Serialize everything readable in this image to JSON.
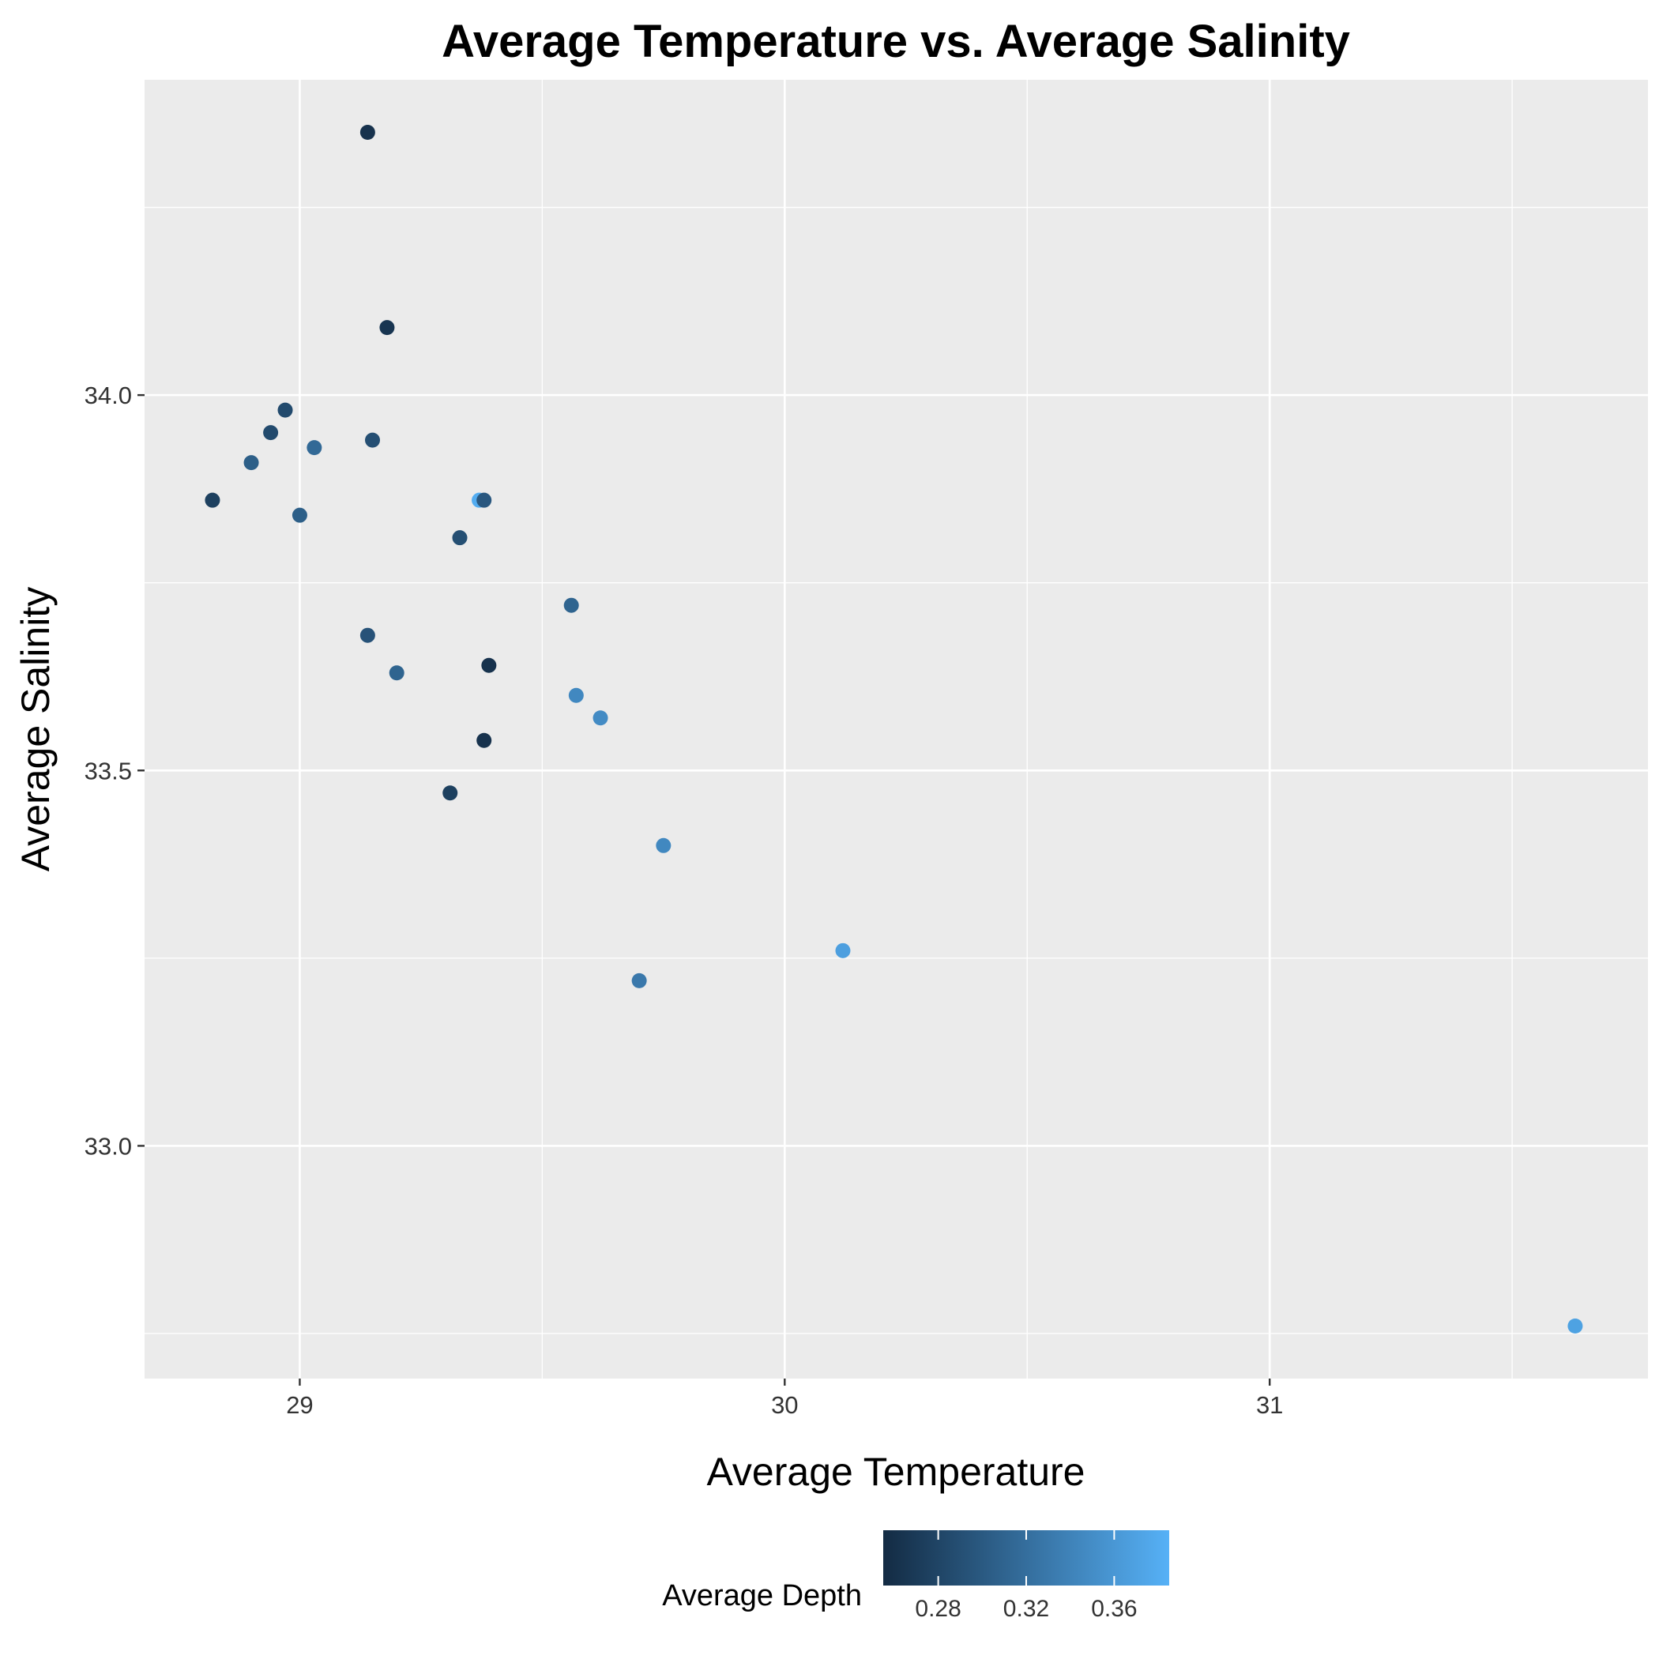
{
  "chart_data": {
    "type": "scatter",
    "title": "Average Temperature vs. Average Salinity",
    "xlabel": "Average Temperature",
    "ylabel": "Average Salinity",
    "xlim": [
      28.68,
      31.78
    ],
    "ylim": [
      32.69,
      34.42
    ],
    "x_ticks": [
      29,
      30,
      31
    ],
    "x_tick_labels": [
      "29",
      "30",
      "31"
    ],
    "y_ticks": [
      33.0,
      33.5,
      34.0
    ],
    "y_tick_labels": [
      "33.0",
      "33.5",
      "34.0"
    ],
    "grid": true,
    "legend": {
      "title": "Average Depth",
      "position": "bottom",
      "breaks": [
        0.28,
        0.32,
        0.36
      ],
      "labels": [
        "0.28",
        "0.32",
        "0.36"
      ],
      "range": [
        0.255,
        0.385
      ],
      "low_color": "#132B43",
      "high_color": "#56B1F7"
    },
    "points": [
      {
        "x": 29.14,
        "y": 34.35,
        "color": 0.262
      },
      {
        "x": 29.18,
        "y": 34.09,
        "color": 0.265
      },
      {
        "x": 28.97,
        "y": 33.98,
        "color": 0.285
      },
      {
        "x": 28.94,
        "y": 33.95,
        "color": 0.285
      },
      {
        "x": 29.03,
        "y": 33.93,
        "color": 0.315
      },
      {
        "x": 29.15,
        "y": 33.94,
        "color": 0.29
      },
      {
        "x": 28.9,
        "y": 33.91,
        "color": 0.305
      },
      {
        "x": 28.82,
        "y": 33.86,
        "color": 0.275
      },
      {
        "x": 29.0,
        "y": 33.84,
        "color": 0.305
      },
      {
        "x": 29.37,
        "y": 33.86,
        "color": 0.38
      },
      {
        "x": 29.38,
        "y": 33.86,
        "color": 0.298
      },
      {
        "x": 29.33,
        "y": 33.81,
        "color": 0.29
      },
      {
        "x": 29.56,
        "y": 33.72,
        "color": 0.31
      },
      {
        "x": 29.14,
        "y": 33.68,
        "color": 0.293
      },
      {
        "x": 29.39,
        "y": 33.64,
        "color": 0.262
      },
      {
        "x": 29.2,
        "y": 33.63,
        "color": 0.31
      },
      {
        "x": 29.57,
        "y": 33.6,
        "color": 0.345
      },
      {
        "x": 29.62,
        "y": 33.57,
        "color": 0.348
      },
      {
        "x": 29.38,
        "y": 33.54,
        "color": 0.262
      },
      {
        "x": 29.31,
        "y": 33.47,
        "color": 0.275
      },
      {
        "x": 29.75,
        "y": 33.4,
        "color": 0.345
      },
      {
        "x": 30.12,
        "y": 33.26,
        "color": 0.368
      },
      {
        "x": 29.7,
        "y": 33.22,
        "color": 0.33
      },
      {
        "x": 31.63,
        "y": 32.76,
        "color": 0.37
      }
    ]
  }
}
